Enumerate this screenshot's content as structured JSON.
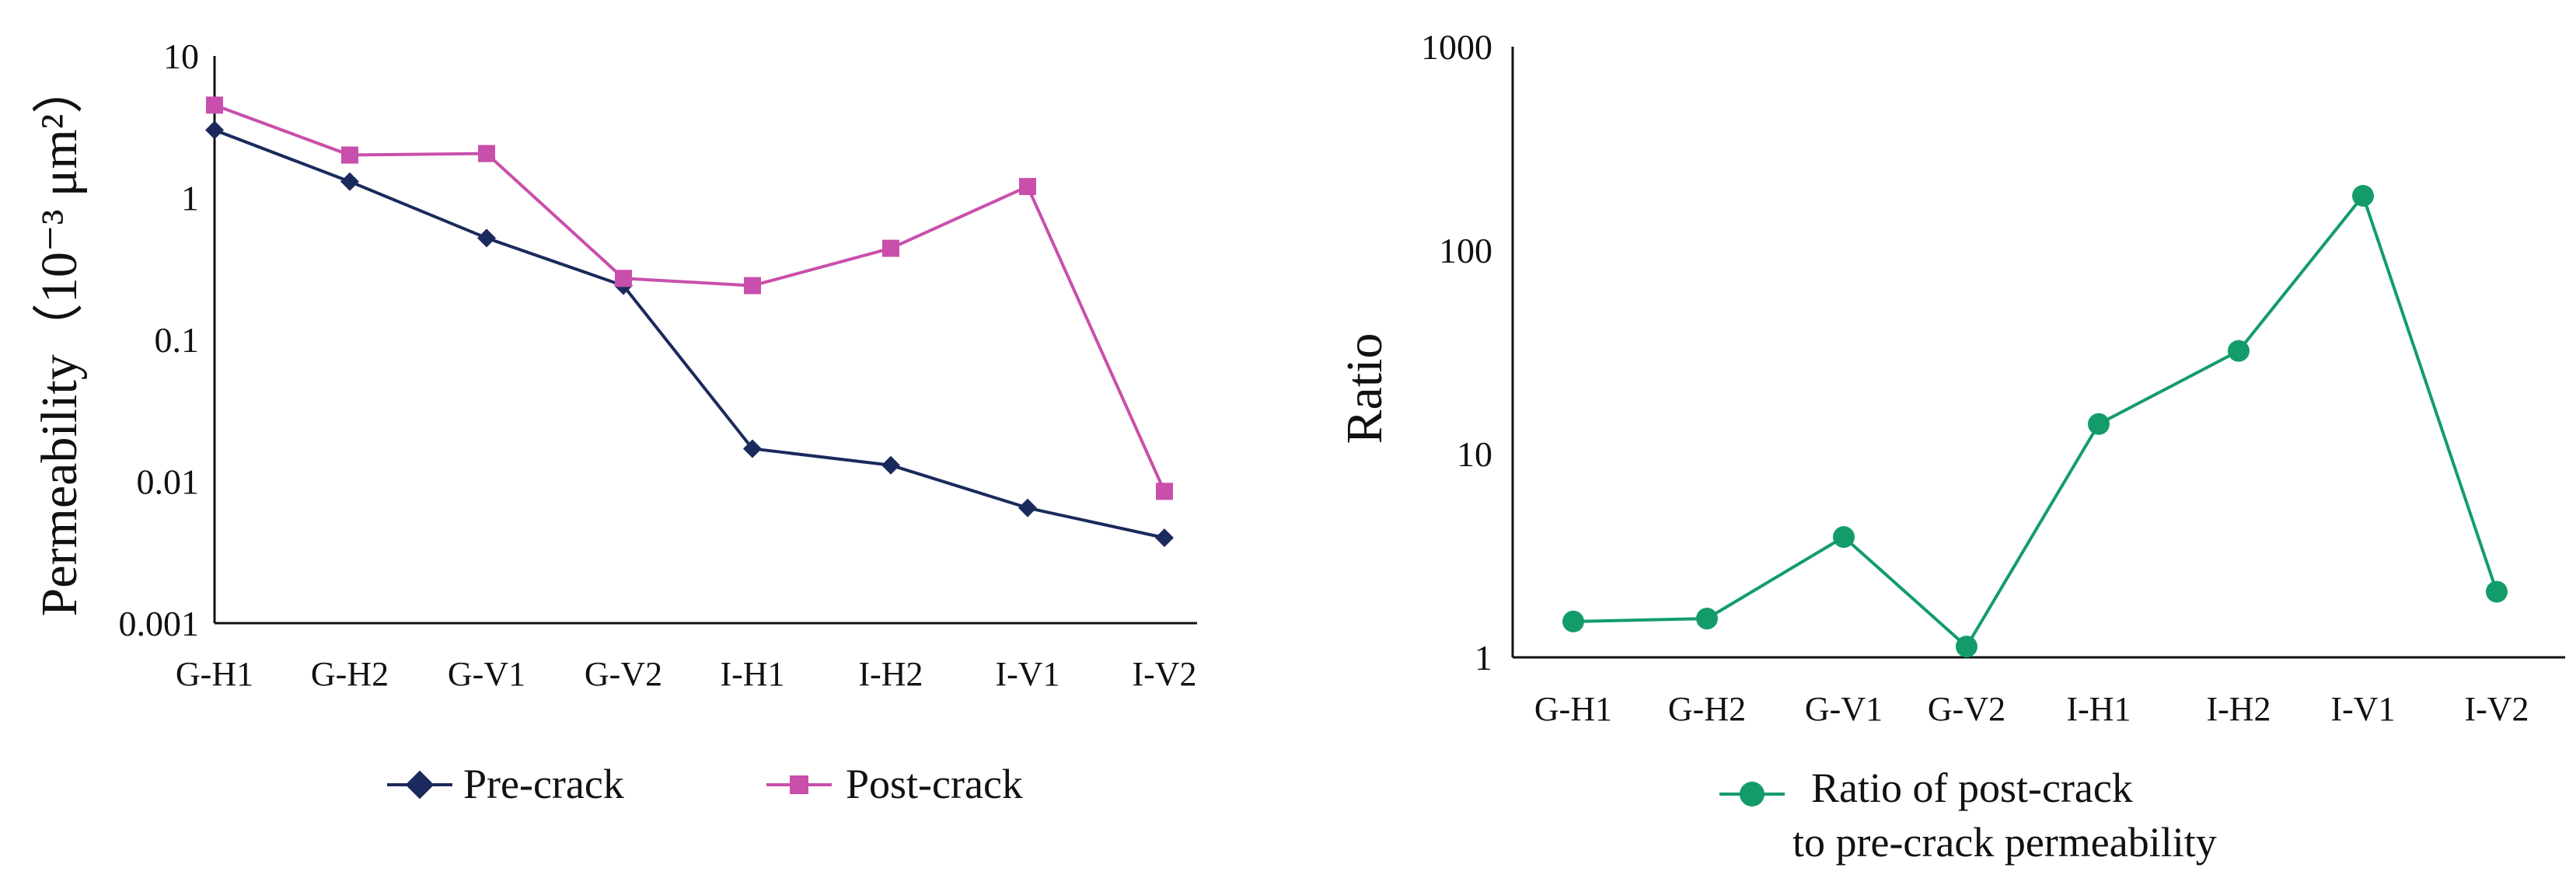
{
  "chart_data": [
    {
      "type": "line",
      "yscale": "log",
      "title": "",
      "xlabel": "",
      "ylabel": "Permeability（10⁻³ μm²）",
      "ylim": [
        0.001,
        10
      ],
      "yticks": [
        "10",
        "1",
        "0.1",
        "0.01",
        "0.001"
      ],
      "categories": [
        "G-H1",
        "G-H2",
        "G-V1",
        "G-V2",
        "I-H1",
        "I-H2",
        "I-V1",
        "I-V2"
      ],
      "legend_position": "bottom",
      "series": [
        {
          "name": "Pre-crack",
          "marker": "diamond",
          "color": "#1b2a5c",
          "values": [
            3.0,
            1.3,
            0.52,
            0.24,
            0.017,
            0.013,
            0.0065,
            0.004
          ]
        },
        {
          "name": "Post-crack",
          "marker": "square",
          "color": "#c94fac",
          "values": [
            4.5,
            2.0,
            2.05,
            0.27,
            0.24,
            0.44,
            1.2,
            0.0085
          ]
        }
      ]
    },
    {
      "type": "line",
      "yscale": "log",
      "title": "",
      "xlabel": "",
      "ylabel": "Ratio",
      "ylim": [
        1,
        1000
      ],
      "yticks": [
        "1000",
        "100",
        "10",
        "1"
      ],
      "categories": [
        "G-H1",
        "G-H2",
        "G-V1",
        "G-V2",
        "I-H1",
        "I-H2",
        "I-V1",
        "I-V2"
      ],
      "legend_position": "bottom",
      "series": [
        {
          "name": "Ratio of post-crack to pre-crack permeability",
          "legend_lines": [
            "Ratio of post-crack",
            "to pre-crack permeability"
          ],
          "marker": "circle",
          "color": "#139c6a",
          "values": [
            1.5,
            1.55,
            3.9,
            1.13,
            14,
            32,
            185,
            2.1
          ]
        }
      ]
    }
  ]
}
